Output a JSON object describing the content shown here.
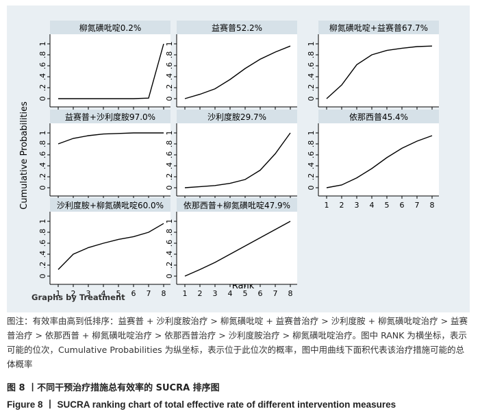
{
  "figure": {
    "ylabel": "Cumulative Probabilities",
    "xlabel": "Rank",
    "footnote": "Graphs by Treatment"
  },
  "chart_data": [
    {
      "type": "line",
      "title": "柳氮磺吡啶0.2%",
      "x": [
        1,
        2,
        3,
        4,
        5,
        6,
        7,
        8
      ],
      "values": [
        0,
        0,
        0,
        0,
        0,
        0,
        0.01,
        1
      ],
      "xlim": [
        1,
        8
      ],
      "ylim": [
        0,
        1
      ],
      "yticks": [
        "0",
        ".2",
        ".4",
        ".6",
        ".8",
        "1"
      ]
    },
    {
      "type": "line",
      "title": "益赛普52.2%",
      "x": [
        1,
        2,
        3,
        4,
        5,
        6,
        7,
        8
      ],
      "values": [
        0,
        0.08,
        0.18,
        0.35,
        0.55,
        0.72,
        0.85,
        0.96
      ],
      "xlim": [
        1,
        8
      ],
      "ylim": [
        0,
        1
      ],
      "yticks": [
        "0",
        ".2",
        ".4",
        ".6",
        ".8",
        "1"
      ]
    },
    {
      "type": "line",
      "title": "柳氮磺吡啶+益赛普67.7%",
      "x": [
        1,
        2,
        3,
        4,
        5,
        6,
        7,
        8
      ],
      "values": [
        0,
        0.25,
        0.62,
        0.8,
        0.88,
        0.92,
        0.95,
        0.96
      ],
      "xlim": [
        1,
        8
      ],
      "ylim": [
        0,
        1
      ],
      "yticks": [
        "0",
        ".2",
        ".4",
        ".6",
        ".8",
        "1"
      ]
    },
    {
      "type": "line",
      "title": "益赛普+沙利度胺97.0%",
      "x": [
        1,
        2,
        3,
        4,
        5,
        6,
        7,
        8
      ],
      "values": [
        0.8,
        0.9,
        0.95,
        0.98,
        0.99,
        1,
        1,
        1
      ],
      "xlim": [
        1,
        8
      ],
      "ylim": [
        0,
        1
      ],
      "yticks": [
        "0",
        ".2",
        ".4",
        ".6",
        ".8",
        "1"
      ]
    },
    {
      "type": "line",
      "title": "沙利度胺29.7%",
      "x": [
        1,
        2,
        3,
        4,
        5,
        6,
        7,
        8
      ],
      "values": [
        0,
        0.02,
        0.04,
        0.08,
        0.15,
        0.32,
        0.62,
        1
      ],
      "xlim": [
        1,
        8
      ],
      "ylim": [
        0,
        1
      ],
      "yticks": [
        "0",
        ".2",
        ".4",
        ".6",
        ".8",
        "1"
      ]
    },
    {
      "type": "line",
      "title": "依那西普45.4%",
      "x": [
        1,
        2,
        3,
        4,
        5,
        6,
        7,
        8
      ],
      "values": [
        0,
        0.05,
        0.18,
        0.35,
        0.55,
        0.72,
        0.85,
        0.95
      ],
      "xlim": [
        1,
        8
      ],
      "ylim": [
        0,
        1
      ],
      "yticks": [
        "0",
        ".2",
        ".4",
        ".6",
        ".8",
        "1"
      ]
    },
    {
      "type": "line",
      "title": "沙利度胺+柳氮磺吡啶60.0%",
      "x": [
        1,
        2,
        3,
        4,
        5,
        6,
        7,
        8
      ],
      "values": [
        0.12,
        0.4,
        0.52,
        0.6,
        0.67,
        0.72,
        0.8,
        0.96
      ],
      "xlim": [
        1,
        8
      ],
      "ylim": [
        0,
        1
      ],
      "yticks": [
        "0",
        ".2",
        ".4",
        ".6",
        ".8",
        "1"
      ]
    },
    {
      "type": "line",
      "title": "依那西普+柳氮磺吡啶47.9%",
      "x": [
        1,
        2,
        3,
        4,
        5,
        6,
        7,
        8
      ],
      "values": [
        0,
        0.12,
        0.25,
        0.4,
        0.55,
        0.7,
        0.85,
        1
      ],
      "xlim": [
        1,
        8
      ],
      "ylim": [
        0,
        1
      ],
      "yticks": [
        "0",
        ".2",
        ".4",
        ".6",
        ".8",
        "1"
      ]
    }
  ],
  "caption": {
    "note": "图注：有效率由高到低排序：益赛普 + 沙利度胺治疗 > 柳氮磺吡啶 + 益赛普治疗 > 沙利度胺 + 柳氮磺吡啶治疗 > 益赛普治疗 > 依那西普 + 柳氮磺吡啶治疗 > 依那西普治疗 > 沙利度胺治疗 > 柳氮磺吡啶治疗。图中 RANK 为横坐标，表示可能的位次，Cumulative Probabilities 为纵坐标，表示位于此位次的概率，图中用曲线下面积代表该治疗措施可能的总体概率",
    "title_cn": "图 8 丨不同干预治疗措施总有效率的 SUCRA 排序图",
    "title_en": "Figure 8 丨 SUCRA ranking chart of total effective rate of different intervention measures"
  }
}
